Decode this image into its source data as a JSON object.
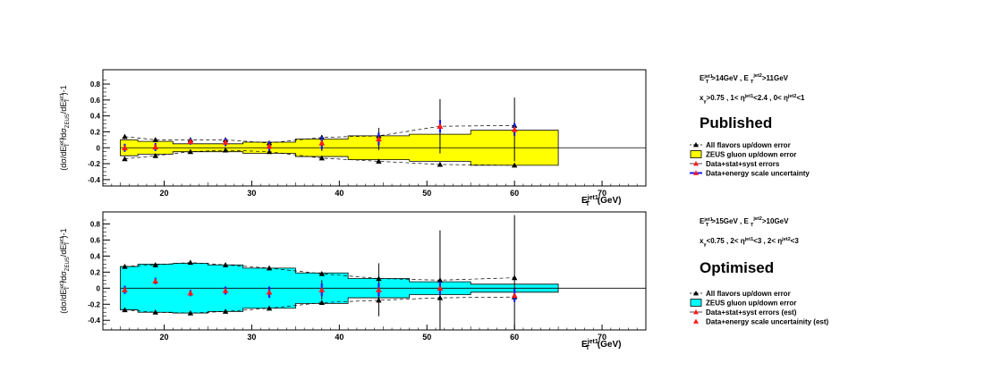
{
  "chart_data": [
    {
      "id": "published",
      "type": "scatter",
      "ylabel": "(dσ/dE_T^jet1/dσ_ZEUS/dE_T^jet1)-1",
      "xlabel": "E_T^jet1 (GeV)",
      "xlabel_parts": {
        "main": "E",
        "sub": "T",
        "sup": "jet1",
        "unit": " (GeV)"
      },
      "ylabel_parts": {
        "open": "(dσ/dE",
        "sub1": "T",
        "sup1": "jet1",
        "mid": "/dσ",
        "sub2": "ZEUS",
        "mid2": "/dE",
        "sub3": "T",
        "sup3": "jet1",
        "close": ")-1"
      },
      "xlim": [
        13,
        75
      ],
      "ylim": [
        -0.48,
        0.98
      ],
      "xticks": [
        20,
        30,
        40,
        50,
        60,
        70
      ],
      "yticks": [
        -0.4,
        -0.2,
        0,
        0.2,
        0.4,
        0.6,
        0.8
      ],
      "yticklabels": [
        "-0.4",
        "-0.2",
        "0",
        "0.2",
        "0.4",
        "0.6",
        "0.8"
      ],
      "band_color": "#ffff00",
      "band_edges": [
        15,
        17,
        21,
        25,
        29,
        35,
        41,
        48,
        55,
        65
      ],
      "band_half": [
        0.1,
        0.08,
        0.05,
        0.05,
        0.07,
        0.11,
        0.15,
        0.17,
        0.22
      ],
      "tri_x": [
        15.5,
        19,
        23,
        27,
        32,
        38,
        44.5,
        51.5,
        60
      ],
      "tri_up": [
        0.14,
        0.1,
        0.1,
        0.1,
        0.06,
        0.13,
        0.15,
        0.27,
        0.28
      ],
      "tri_down": [
        -0.14,
        -0.1,
        -0.05,
        -0.03,
        -0.05,
        -0.13,
        -0.17,
        -0.21,
        -0.22
      ],
      "points": [
        {
          "x": 15.5,
          "y": 0.0,
          "err": 0.05
        },
        {
          "x": 19,
          "y": 0.01,
          "err": 0.05
        },
        {
          "x": 23,
          "y": 0.08,
          "err": 0.04
        },
        {
          "x": 27,
          "y": 0.07,
          "err": 0.05
        },
        {
          "x": 32,
          "y": 0.02,
          "err": 0.06
        },
        {
          "x": 38,
          "y": 0.06,
          "err": 0.1
        },
        {
          "x": 44.5,
          "y": 0.11,
          "err": 0.14
        },
        {
          "x": 51.5,
          "y": 0.27,
          "err": 0.34
        },
        {
          "x": 60,
          "y": 0.23,
          "err": 0.4
        }
      ],
      "legend": [
        {
          "marker": "black-triangle",
          "label": "All flavors up/down error"
        },
        {
          "marker": "band",
          "label": "ZEUS gluon up/down error"
        },
        {
          "marker": "red-triangle",
          "label": "Data+stat+syst errors"
        },
        {
          "marker": "blue-line",
          "label": "Data+energy scale uncertainty"
        }
      ],
      "title": "Published",
      "cuts1": {
        "a": "E",
        "a_sup": "jet1",
        "a_sub": "T",
        "b": ">14GeV , E ",
        "b_sub": "T",
        "b_sup": "jet2",
        "c": ">11GeV"
      },
      "cuts2": {
        "a": "x",
        "a_sub": "γ",
        "b": ">0.75 , 1< η",
        "b_sup": "jet1",
        "c": "<2.4 , 0< η",
        "c_sup": "jet2",
        "d": "<1"
      }
    },
    {
      "id": "optimised",
      "type": "scatter",
      "ylabel": "(dσ/dE_T^jet1/dσ_ZEUS/dE_T^jet1)-1",
      "xlabel": "E_T^jet1 (GeV)",
      "xlabel_parts": {
        "main": "E",
        "sub": "T",
        "sup": "jet1",
        "unit": " (GeV)"
      },
      "ylabel_parts": {
        "open": "(dσ/dE",
        "sub1": "T",
        "sup1": "jet1",
        "mid": "/dσ",
        "sub2": "ZEUS",
        "mid2": "/dE",
        "sub3": "T",
        "sup3": "jet1",
        "close": ")-1"
      },
      "xlim": [
        13,
        75
      ],
      "ylim": [
        -0.52,
        0.95
      ],
      "xticks": [
        20,
        30,
        40,
        50,
        60,
        70
      ],
      "yticks": [
        -0.4,
        -0.2,
        0,
        0.2,
        0.4,
        0.6,
        0.8
      ],
      "yticklabels": [
        "-0.4",
        "-0.2",
        "0",
        "0.2",
        "0.4",
        "0.6",
        "0.8"
      ],
      "band_color": "#00ffff",
      "band_edges": [
        15,
        17,
        21,
        25,
        29,
        35,
        41,
        48,
        55,
        65
      ],
      "band_half": [
        0.27,
        0.3,
        0.31,
        0.29,
        0.25,
        0.19,
        0.12,
        0.08,
        0.05
      ],
      "tri_x": [
        15.5,
        19,
        23,
        27,
        32,
        38,
        44.5,
        51.5,
        60
      ],
      "tri_up": [
        0.27,
        0.29,
        0.32,
        0.29,
        0.25,
        0.18,
        0.12,
        0.1,
        0.13
      ],
      "tri_down": [
        -0.27,
        -0.3,
        -0.31,
        -0.29,
        -0.25,
        -0.18,
        -0.15,
        -0.12,
        -0.11
      ],
      "points": [
        {
          "x": 15.5,
          "y": -0.02,
          "err": 0.05
        },
        {
          "x": 19,
          "y": 0.09,
          "err": 0.04
        },
        {
          "x": 23,
          "y": -0.06,
          "err": 0.04
        },
        {
          "x": 27,
          "y": -0.03,
          "err": 0.05
        },
        {
          "x": 32,
          "y": -0.05,
          "err": 0.07
        },
        {
          "x": 38,
          "y": -0.02,
          "err": 0.12
        },
        {
          "x": 44.5,
          "y": -0.02,
          "err": 0.33
        },
        {
          "x": 51.5,
          "y": 0.0,
          "err": 0.72
        },
        {
          "x": 60,
          "y": -0.09,
          "err": 1.0
        }
      ],
      "legend": [
        {
          "marker": "black-triangle",
          "label": "All flavors up/down error"
        },
        {
          "marker": "band",
          "label": "ZEUS gluon up/down error"
        },
        {
          "marker": "red-triangle",
          "label": "Data+stat+syst errors (est)"
        },
        {
          "marker": "red-triangle-only",
          "label": "Data+energy scale uncertainity (est)"
        }
      ],
      "title": "Optimised",
      "cuts1": {
        "a": "E",
        "a_sup": "jet1",
        "a_sub": "T",
        "b": ">15GeV , E ",
        "b_sub": "T",
        "b_sup": "jet2",
        "c": ">10GeV"
      },
      "cuts2": {
        "a": "x",
        "a_sub": "γ",
        "b": "<0.75 , 2< η",
        "b_sup": "jet1",
        "c": "<3 , 2< η",
        "c_sup": "jet2",
        "d": "<3"
      }
    }
  ]
}
